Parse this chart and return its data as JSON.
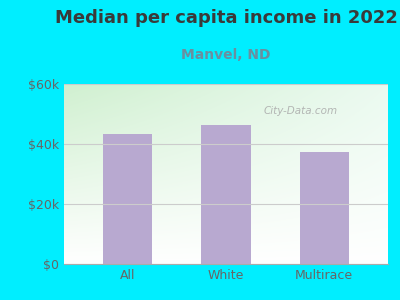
{
  "title": "Median per capita income in 2022",
  "subtitle": "Manvel, ND",
  "categories": [
    "All",
    "White",
    "Multirace"
  ],
  "values": [
    43500,
    46500,
    37500
  ],
  "bar_color": "#b8a9d0",
  "title_color": "#3a3a3a",
  "subtitle_color": "#6a8fa0",
  "tick_label_color": "#666666",
  "background_outer": "#00eeff",
  "background_inner_topleft": "#d0f0d0",
  "background_inner_right": "#f0faf5",
  "background_inner_bottom": "#ffffff",
  "ylim": [
    0,
    60000
  ],
  "yticks": [
    0,
    20000,
    40000,
    60000
  ],
  "ytick_labels": [
    "$0",
    "$20k",
    "$40k",
    "$60k"
  ],
  "watermark": "City-Data.com",
  "title_fontsize": 13,
  "subtitle_fontsize": 10
}
